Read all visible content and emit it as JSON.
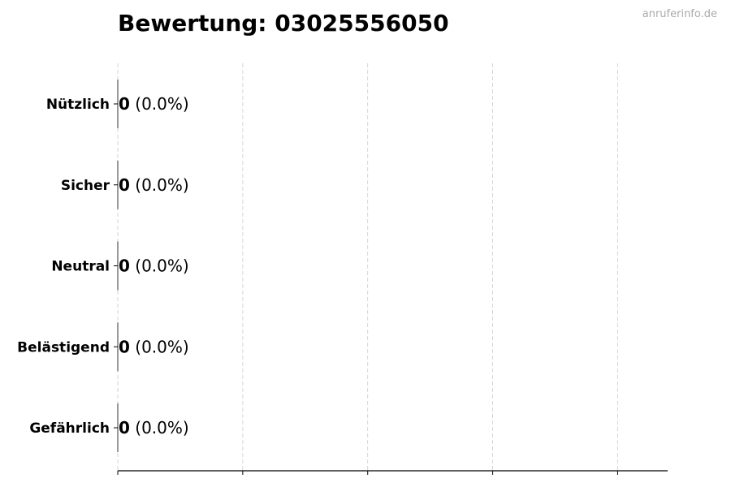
{
  "chart_data": {
    "type": "bar",
    "orientation": "horizontal",
    "title": "Bewertung: 03025556050",
    "categories": [
      "Nützlich",
      "Sicher",
      "Neutral",
      "Belästigend",
      "Gefährlich"
    ],
    "values": [
      0,
      0,
      0,
      0,
      0
    ],
    "data_labels": [
      {
        "count": "0",
        "percent": "(0.0%)"
      },
      {
        "count": "0",
        "percent": "(0.0%)"
      },
      {
        "count": "0",
        "percent": "(0.0%)"
      },
      {
        "count": "0",
        "percent": "(0.0%)"
      },
      {
        "count": "0",
        "percent": "(0.0%)"
      }
    ],
    "xlabel": "",
    "ylabel": "",
    "xlim": [
      0,
      4.4
    ],
    "xticks": [
      0,
      1,
      2,
      3,
      4
    ],
    "xtick_labels_shown": false,
    "grid": "vertical dashed",
    "bar_color": "#333333",
    "grid_color": "#cccccc"
  },
  "watermark": "anruferinfo.de"
}
